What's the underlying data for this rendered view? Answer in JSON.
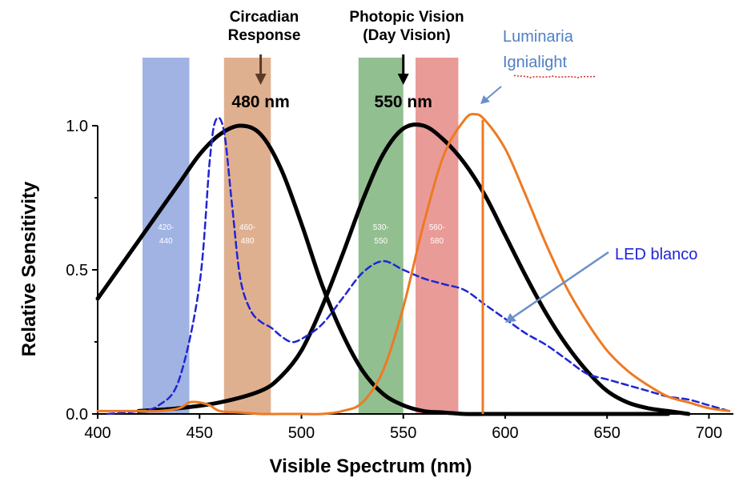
{
  "chart_data": {
    "type": "line",
    "xlabel": "Visible Spectrum (nm)",
    "ylabel": "Relative Sensitivity",
    "xlim": [
      400,
      712
    ],
    "ylim": [
      0,
      1.0
    ],
    "x_ticks": [
      "400",
      "450",
      "500",
      "550",
      "600",
      "650",
      "700"
    ],
    "y_ticks": [
      "0.0",
      "0.5",
      "1.0"
    ],
    "grid": false,
    "headings": [
      {
        "lines": [
          "Circadian",
          "Response"
        ],
        "x": 480
      },
      {
        "lines": [
          "Photopic Vision",
          "(Day Vision)"
        ],
        "x": 550
      }
    ],
    "peaks": [
      {
        "label": "480 nm",
        "x": 480,
        "arrow_color": "#5a3a28"
      },
      {
        "label": "550 nm",
        "x": 550,
        "arrow_color": "#000000"
      }
    ],
    "bands": [
      {
        "from": 422,
        "to": 445,
        "label": [
          "420-",
          "440"
        ],
        "color": "#8fa6de"
      },
      {
        "from": 462,
        "to": 485,
        "label": [
          "460-",
          "480"
        ],
        "color": "#d9a27c"
      },
      {
        "from": 528,
        "to": 550,
        "label": [
          "530-",
          "550"
        ],
        "color": "#7fb47c"
      },
      {
        "from": 556,
        "to": 577,
        "label": [
          "560-",
          "580"
        ],
        "color": "#e58a86"
      }
    ],
    "series": [
      {
        "name": "",
        "color": "#000000",
        "style": "solid",
        "x": [
          400,
          410,
          420,
          430,
          440,
          450,
          460,
          470,
          480,
          490,
          500,
          510,
          520,
          530,
          540,
          550,
          560,
          570,
          580,
          590,
          600,
          610,
          620,
          630,
          640,
          650,
          660,
          670,
          680
        ],
        "y": [
          0.4,
          0.5,
          0.6,
          0.7,
          0.8,
          0.9,
          0.97,
          1.0,
          0.97,
          0.85,
          0.66,
          0.45,
          0.28,
          0.15,
          0.07,
          0.03,
          0.01,
          0.005,
          0,
          0,
          0,
          0,
          0,
          0,
          0,
          0,
          0,
          0,
          0
        ]
      },
      {
        "name": "",
        "color": "#000000",
        "style": "solid",
        "x": [
          420,
          440,
          460,
          480,
          490,
          500,
          510,
          520,
          530,
          540,
          550,
          560,
          570,
          580,
          590,
          600,
          610,
          620,
          630,
          640,
          650,
          660,
          670,
          680,
          690
        ],
        "y": [
          0.01,
          0.02,
          0.04,
          0.08,
          0.13,
          0.22,
          0.37,
          0.55,
          0.74,
          0.9,
          0.99,
          1.0,
          0.95,
          0.87,
          0.76,
          0.62,
          0.48,
          0.35,
          0.24,
          0.15,
          0.08,
          0.04,
          0.02,
          0.01,
          0.0
        ]
      },
      {
        "name": "LED blanco",
        "color": "#1f25d6",
        "style": "dashed",
        "x": [
          405,
          420,
          430,
          440,
          450,
          455,
          458,
          462,
          466,
          470,
          475,
          480,
          485,
          490,
          495,
          500,
          510,
          520,
          530,
          540,
          550,
          560,
          570,
          580,
          590,
          600,
          610,
          620,
          630,
          640,
          650,
          660,
          670,
          680,
          690,
          700,
          710
        ],
        "y": [
          0.0,
          0.01,
          0.03,
          0.12,
          0.45,
          0.88,
          1.02,
          0.98,
          0.72,
          0.47,
          0.36,
          0.32,
          0.3,
          0.27,
          0.25,
          0.26,
          0.31,
          0.4,
          0.49,
          0.53,
          0.5,
          0.47,
          0.45,
          0.43,
          0.38,
          0.33,
          0.28,
          0.24,
          0.19,
          0.14,
          0.12,
          0.1,
          0.08,
          0.06,
          0.05,
          0.03,
          0.01
        ]
      },
      {
        "name": "Luminaria Ignialight",
        "color": "#ee7a22",
        "style": "solid",
        "x": [
          400,
          420,
          430,
          440,
          445,
          450,
          455,
          460,
          470,
          480,
          490,
          500,
          510,
          520,
          530,
          540,
          550,
          560,
          570,
          580,
          585,
          590,
          600,
          610,
          620,
          630,
          640,
          650,
          660,
          670,
          680,
          690,
          700,
          710
        ],
        "y": [
          0.01,
          0.01,
          0.01,
          0.02,
          0.04,
          0.04,
          0.03,
          0.01,
          0.005,
          0.0,
          0.0,
          0.0,
          0.0,
          0.01,
          0.04,
          0.15,
          0.37,
          0.66,
          0.9,
          1.02,
          1.04,
          1.02,
          0.92,
          0.76,
          0.59,
          0.44,
          0.32,
          0.22,
          0.15,
          0.1,
          0.06,
          0.04,
          0.02,
          0.01
        ]
      }
    ],
    "vertical_line": {
      "x": 589,
      "color": "#ee7a22"
    },
    "annotations": [
      {
        "lines": [
          "Luminaria",
          "Ignialight"
        ],
        "color": "#4f7fc3",
        "points_to": {
          "x": 600,
          "y": 1.05
        }
      },
      {
        "lines": [
          "LED blanco"
        ],
        "color": "#1f25d6",
        "points_to": {
          "x": 600,
          "y": 0.32
        }
      }
    ]
  }
}
